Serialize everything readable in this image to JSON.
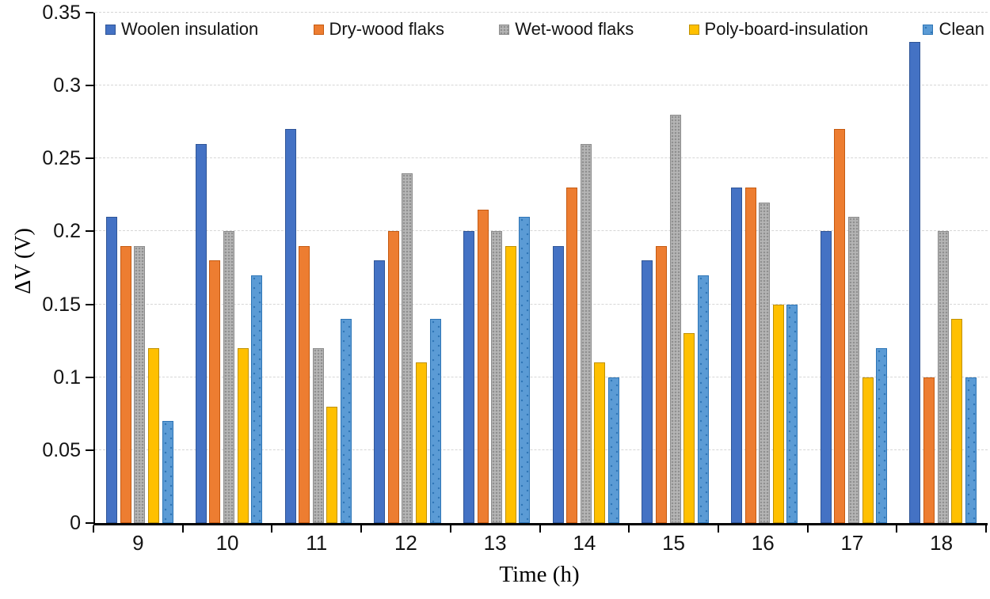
{
  "chart_data": {
    "type": "bar",
    "title": "",
    "xlabel": "Time (h)",
    "ylabel": "ΔV (V)",
    "ylim": [
      0,
      0.35
    ],
    "yticks": [
      "0",
      "0.05",
      "0.1",
      "0.15",
      "0.2",
      "0.25",
      "0.3",
      "0.35"
    ],
    "grid": true,
    "legend_position": "top",
    "categories": [
      "9",
      "10",
      "11",
      "12",
      "13",
      "14",
      "15",
      "16",
      "17",
      "18"
    ],
    "series": [
      {
        "name": "Woolen insulation",
        "color": "#4472C4",
        "border_color": "#2F5597",
        "pattern": "solid",
        "pattern_color": "",
        "values": [
          0.21,
          0.26,
          0.27,
          0.18,
          0.2,
          0.19,
          0.18,
          0.23,
          0.2,
          0.33
        ]
      },
      {
        "name": "Dry-wood flaks",
        "color": "#ED7D31",
        "border_color": "#C55A11",
        "pattern": "solid",
        "pattern_color": "",
        "values": [
          0.19,
          0.18,
          0.19,
          0.2,
          0.215,
          0.23,
          0.19,
          0.23,
          0.27,
          0.1
        ]
      },
      {
        "name": "Wet-wood flaks",
        "color": "#B5B5B5",
        "border_color": "#8C8C8C",
        "pattern": "dense-dots",
        "pattern_color": "#8F8F8F",
        "values": [
          0.19,
          0.2,
          0.12,
          0.24,
          0.2,
          0.26,
          0.28,
          0.22,
          0.21,
          0.2
        ]
      },
      {
        "name": "Poly-board-insulation",
        "color": "#FFC000",
        "border_color": "#BF9000",
        "pattern": "solid",
        "pattern_color": "",
        "values": [
          0.12,
          0.12,
          0.08,
          0.11,
          0.19,
          0.11,
          0.13,
          0.15,
          0.1,
          0.14
        ]
      },
      {
        "name": "Clean",
        "color": "#5B9BD5",
        "border_color": "#2E75B6",
        "pattern": "sparse-dots",
        "pattern_color": "#2E75B6",
        "values": [
          0.07,
          0.17,
          0.14,
          0.14,
          0.21,
          0.1,
          0.17,
          0.15,
          0.12,
          0.1
        ]
      }
    ]
  }
}
